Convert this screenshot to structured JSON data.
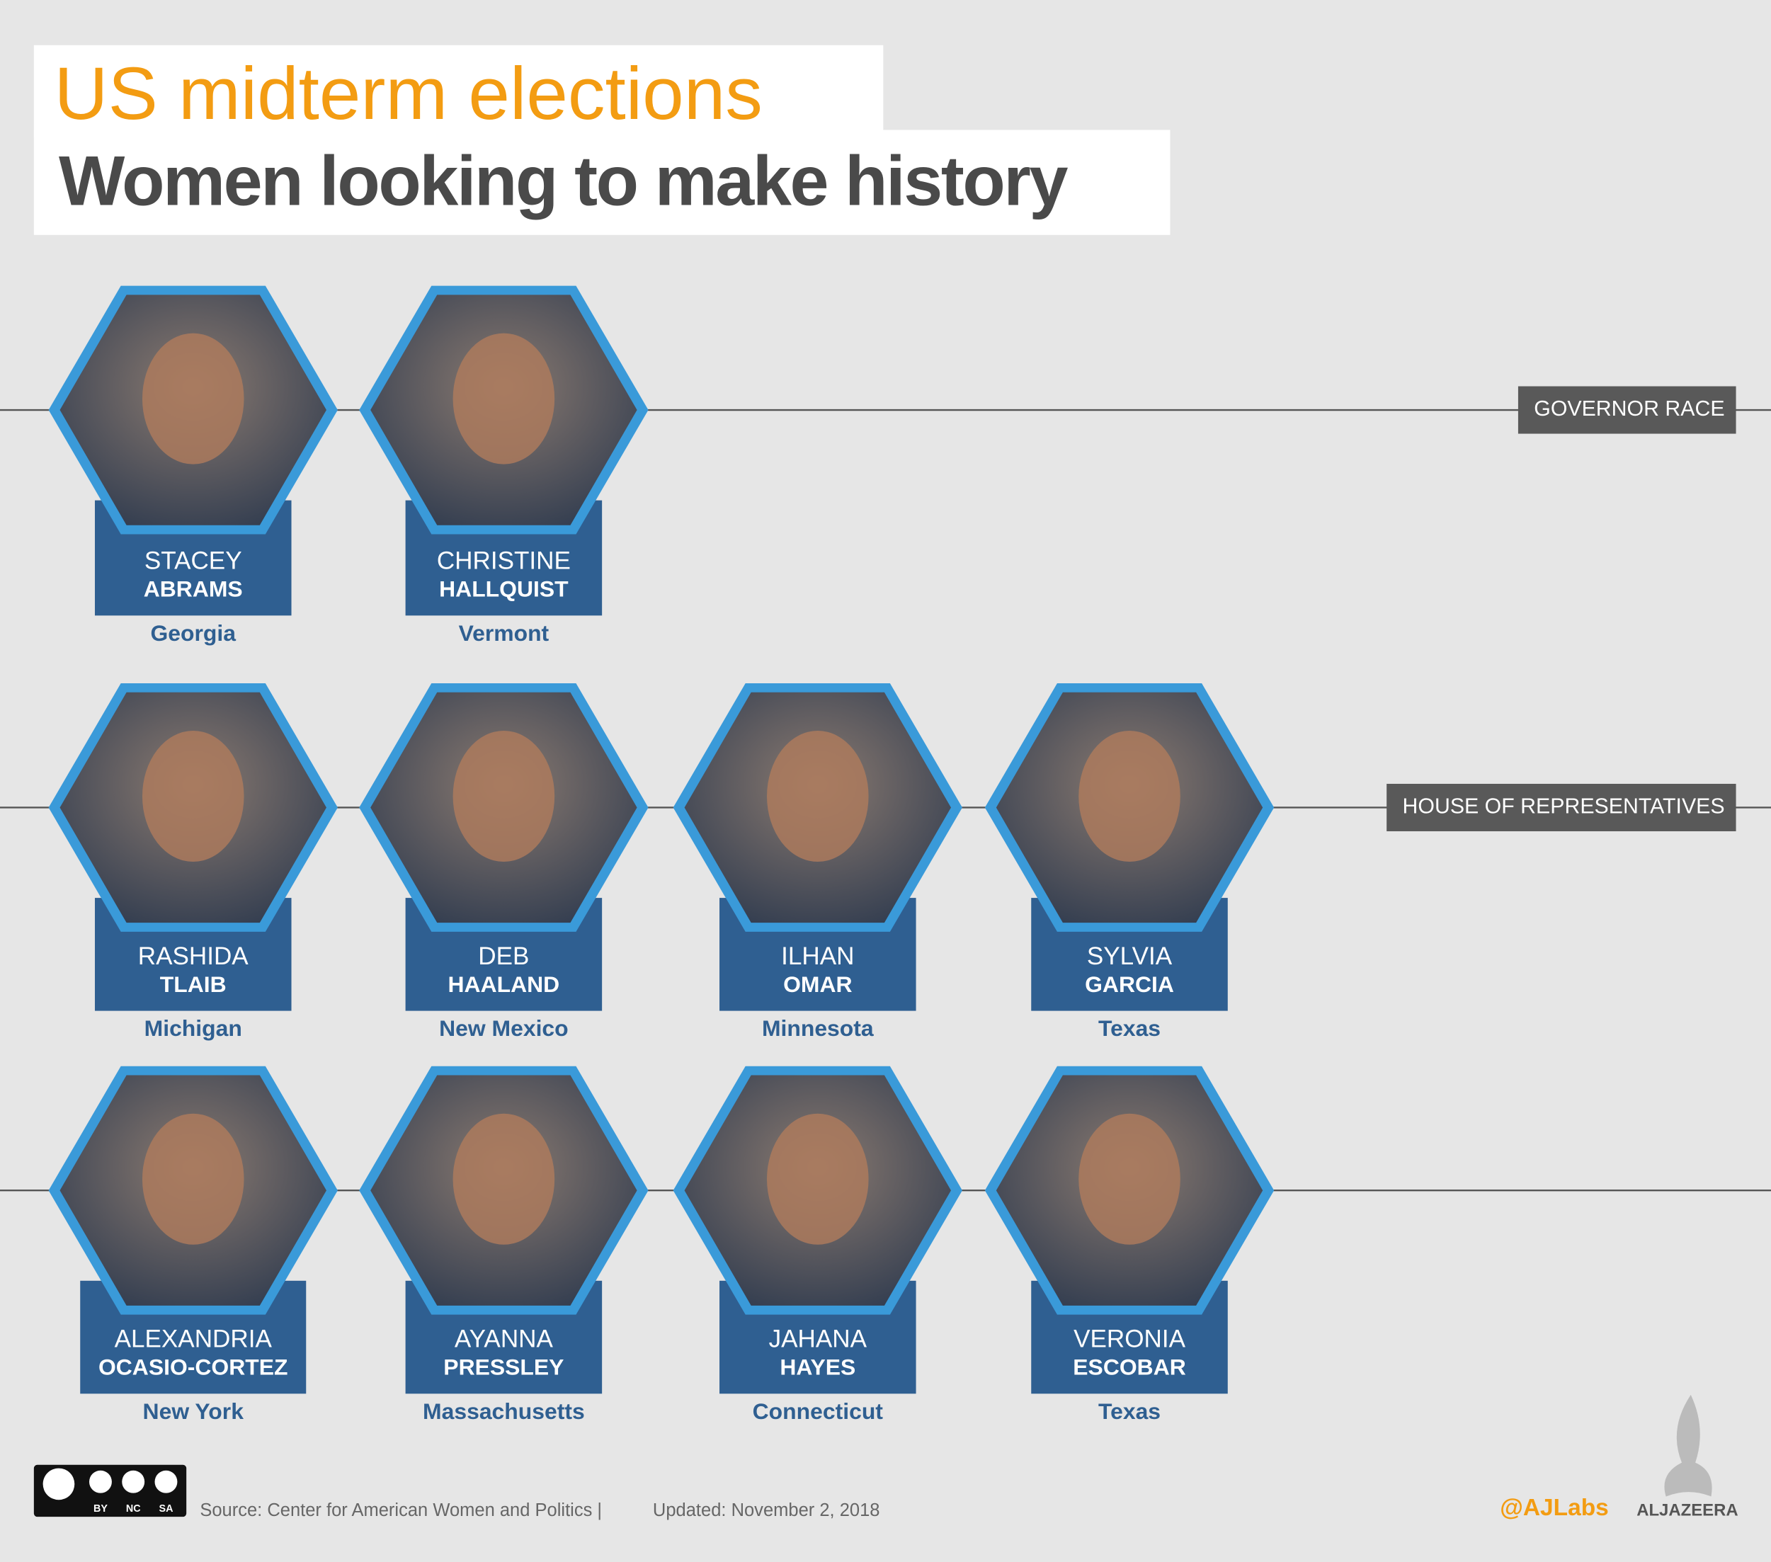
{
  "header": {
    "title": "US midterm elections",
    "subtitle": "Women looking to make history"
  },
  "sections": [
    {
      "label": "GOVERNOR RACE",
      "candidates": [
        {
          "first": "STACEY",
          "last": "ABRAMS",
          "state": "Georgia"
        },
        {
          "first": "CHRISTINE",
          "last": "HALLQUIST",
          "state": "Vermont"
        }
      ]
    },
    {
      "label": "HOUSE OF REPRESENTATIVES",
      "candidates": [
        {
          "first": "RASHIDA",
          "last": "TLAIB",
          "state": "Michigan"
        },
        {
          "first": "DEB",
          "last": "HAALAND",
          "state": "New Mexico"
        },
        {
          "first": "ILHAN",
          "last": "OMAR",
          "state": "Minnesota"
        },
        {
          "first": "SYLVIA",
          "last": "GARCIA",
          "state": "Texas"
        },
        {
          "first": "ALEXANDRIA",
          "last": "OCASIO-CORTEZ",
          "state": "New York"
        },
        {
          "first": "AYANNA",
          "last": "PRESSLEY",
          "state": "Massachusetts"
        },
        {
          "first": "JAHANA",
          "last": "HAYES",
          "state": "Connecticut"
        },
        {
          "first": "VERONIA",
          "last": "ESCOBAR",
          "state": "Texas"
        }
      ]
    }
  ],
  "footer": {
    "license": [
      "BY",
      "NC",
      "SA"
    ],
    "source": "Source: Center for American Women and Politics |",
    "updated": "Updated: November 2, 2018",
    "handle": "@AJLabs",
    "brand": "ALJAZEERA"
  }
}
